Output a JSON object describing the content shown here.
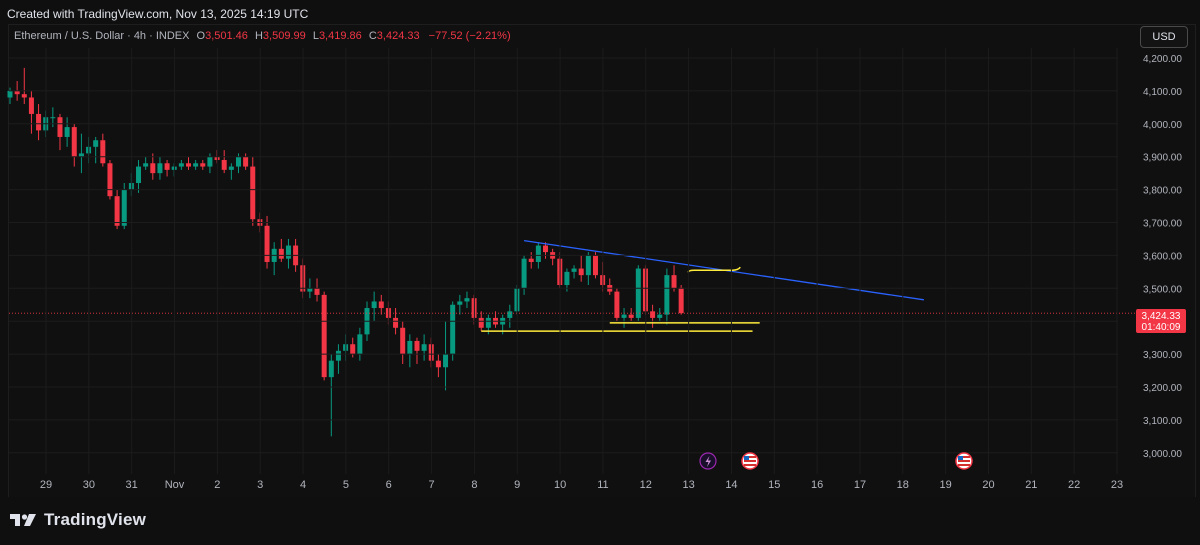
{
  "header": {
    "created": "Created with TradingView.com, Nov 13, 2025 14:19 UTC"
  },
  "legend": {
    "symbol": "Ethereum / U.S. Dollar · 4h · INDEX",
    "o_label": "O",
    "o_value": "3,501.46",
    "h_label": "H",
    "h_value": "3,509.99",
    "l_label": "L",
    "l_value": "3,419.86",
    "c_label": "C",
    "c_value": "3,424.33",
    "change": "−77.52 (−2.21%)"
  },
  "currency_button": "USD",
  "price_tag": {
    "price": "3,424.33",
    "countdown": "01:40:09"
  },
  "footer": {
    "brand": "TradingView"
  },
  "colors": {
    "up": "#089981",
    "down": "#f23645",
    "trendline": "#2962ff",
    "level": "#ffeb3b",
    "background": "#101010"
  },
  "icons": {
    "logo": "tradingview-logo-icon",
    "event1": "lightning-icon",
    "event2": "us-flag-icon",
    "event3": "us-flag-icon"
  },
  "chart_data": {
    "type": "candlestick",
    "timeframe": "4h",
    "y_ticks": [
      4200,
      4100,
      4000,
      3900,
      3800,
      3700,
      3600,
      3500,
      3400,
      3300,
      3200,
      3100,
      3000
    ],
    "y_tick_labels": [
      "4,200.00",
      "4,100.00",
      "4,000.00",
      "3,900.00",
      "3,800.00",
      "3,700.00",
      "3,600.00",
      "3,500.00",
      "3,400.00",
      "3,300.00",
      "3,200.00",
      "3,100.00",
      "3,000.00"
    ],
    "ylim": [
      2910,
      4280
    ],
    "x_labels": [
      "29",
      "30",
      "31",
      "Nov",
      "2",
      "3",
      "4",
      "5",
      "6",
      "7",
      "8",
      "9",
      "10",
      "11",
      "12",
      "13",
      "14",
      "15",
      "16",
      "17",
      "18",
      "19",
      "20",
      "21",
      "22",
      "23"
    ],
    "x_label_index": [
      0,
      6,
      12,
      18,
      24,
      30,
      36,
      42,
      48,
      54,
      60,
      66,
      72,
      78,
      84,
      90,
      96,
      102,
      108,
      114,
      120,
      126,
      132,
      138,
      144,
      150
    ],
    "candles": [
      [
        4080,
        4110,
        4060,
        4100
      ],
      [
        4100,
        4130,
        4070,
        4090
      ],
      [
        4090,
        4170,
        4060,
        4080
      ],
      [
        4080,
        4100,
        3970,
        4030
      ],
      [
        4030,
        4060,
        3950,
        3980
      ],
      [
        3980,
        4040,
        3960,
        4020
      ],
      [
        4020,
        4050,
        3990,
        4020
      ],
      [
        4020,
        4030,
        3920,
        3960
      ],
      [
        3960,
        4020,
        3930,
        3990
      ],
      [
        3990,
        4000,
        3870,
        3900
      ],
      [
        3900,
        3970,
        3850,
        3910
      ],
      [
        3910,
        3960,
        3880,
        3930
      ],
      [
        3930,
        3960,
        3880,
        3950
      ],
      [
        3950,
        3970,
        3870,
        3880
      ],
      [
        3880,
        3890,
        3770,
        3780
      ],
      [
        3780,
        3800,
        3680,
        3690
      ],
      [
        3690,
        3820,
        3680,
        3800
      ],
      [
        3800,
        3850,
        3780,
        3820
      ],
      [
        3820,
        3890,
        3790,
        3870
      ],
      [
        3870,
        3900,
        3860,
        3880
      ],
      [
        3880,
        3910,
        3830,
        3850
      ],
      [
        3850,
        3900,
        3830,
        3880
      ],
      [
        3880,
        3890,
        3840,
        3860
      ],
      [
        3860,
        3880,
        3840,
        3870
      ],
      [
        3870,
        3890,
        3860,
        3880
      ],
      [
        3880,
        3900,
        3860,
        3870
      ],
      [
        3870,
        3890,
        3860,
        3880
      ],
      [
        3880,
        3890,
        3860,
        3870
      ],
      [
        3870,
        3910,
        3850,
        3900
      ],
      [
        3900,
        3920,
        3880,
        3890
      ],
      [
        3890,
        3920,
        3850,
        3860
      ],
      [
        3860,
        3880,
        3830,
        3870
      ],
      [
        3870,
        3910,
        3850,
        3900
      ],
      [
        3900,
        3910,
        3860,
        3870
      ],
      [
        3870,
        3900,
        3690,
        3710
      ],
      [
        3710,
        3730,
        3670,
        3690
      ],
      [
        3690,
        3720,
        3560,
        3580
      ],
      [
        3580,
        3640,
        3540,
        3620
      ],
      [
        3620,
        3650,
        3580,
        3590
      ],
      [
        3590,
        3650,
        3560,
        3630
      ],
      [
        3630,
        3650,
        3550,
        3570
      ],
      [
        3570,
        3590,
        3470,
        3490
      ],
      [
        3490,
        3530,
        3470,
        3500
      ],
      [
        3500,
        3530,
        3460,
        3480
      ],
      [
        3480,
        3490,
        3220,
        3230
      ],
      [
        3230,
        3300,
        3050,
        3280
      ],
      [
        3280,
        3330,
        3240,
        3310
      ],
      [
        3310,
        3360,
        3280,
        3330
      ],
      [
        3330,
        3350,
        3290,
        3300
      ],
      [
        3300,
        3380,
        3280,
        3360
      ],
      [
        3360,
        3460,
        3340,
        3440
      ],
      [
        3440,
        3490,
        3400,
        3460
      ],
      [
        3460,
        3480,
        3420,
        3440
      ],
      [
        3440,
        3460,
        3390,
        3410
      ],
      [
        3410,
        3440,
        3360,
        3380
      ],
      [
        3380,
        3400,
        3270,
        3300
      ],
      [
        3300,
        3360,
        3260,
        3340
      ],
      [
        3340,
        3350,
        3270,
        3310
      ],
      [
        3310,
        3360,
        3280,
        3330
      ],
      [
        3330,
        3350,
        3260,
        3280
      ],
      [
        3280,
        3300,
        3230,
        3260
      ],
      [
        3260,
        3400,
        3190,
        3300
      ],
      [
        3300,
        3460,
        3280,
        3450
      ],
      [
        3450,
        3480,
        3420,
        3460
      ],
      [
        3460,
        3490,
        3440,
        3470
      ],
      [
        3470,
        3480,
        3390,
        3410
      ],
      [
        3410,
        3430,
        3370,
        3380
      ],
      [
        3380,
        3420,
        3360,
        3410
      ],
      [
        3410,
        3430,
        3380,
        3390
      ],
      [
        3390,
        3420,
        3360,
        3410
      ],
      [
        3410,
        3450,
        3380,
        3430
      ],
      [
        3430,
        3510,
        3420,
        3500
      ],
      [
        3500,
        3600,
        3480,
        3590
      ],
      [
        3590,
        3610,
        3560,
        3580
      ],
      [
        3580,
        3640,
        3560,
        3630
      ],
      [
        3630,
        3640,
        3590,
        3610
      ],
      [
        3610,
        3620,
        3570,
        3590
      ],
      [
        3590,
        3610,
        3500,
        3510
      ],
      [
        3510,
        3560,
        3490,
        3550
      ],
      [
        3550,
        3570,
        3530,
        3560
      ],
      [
        3560,
        3600,
        3520,
        3540
      ],
      [
        3540,
        3610,
        3510,
        3600
      ],
      [
        3600,
        3610,
        3530,
        3540
      ],
      [
        3540,
        3580,
        3490,
        3510
      ],
      [
        3510,
        3530,
        3480,
        3490
      ],
      [
        3490,
        3500,
        3400,
        3410
      ],
      [
        3410,
        3440,
        3380,
        3420
      ],
      [
        3420,
        3440,
        3400,
        3410
      ],
      [
        3410,
        3570,
        3400,
        3560
      ],
      [
        3560,
        3570,
        3420,
        3430
      ],
      [
        3430,
        3450,
        3380,
        3410
      ],
      [
        3410,
        3440,
        3400,
        3420
      ],
      [
        3420,
        3560,
        3390,
        3540
      ],
      [
        3540,
        3570,
        3490,
        3500
      ],
      [
        3501.46,
        3509.99,
        3419.86,
        3424.33
      ]
    ],
    "trendline": {
      "from": [
        72,
        3645
      ],
      "to": [
        128,
        3465
      ]
    },
    "levels": [
      {
        "from": 84,
        "to": 105,
        "y": 3395
      },
      {
        "from": 66,
        "to": 104,
        "y": 3370
      }
    ],
    "bracket": {
      "from": 95,
      "to": 102,
      "y": 3555
    },
    "last_price": 3424.33
  }
}
